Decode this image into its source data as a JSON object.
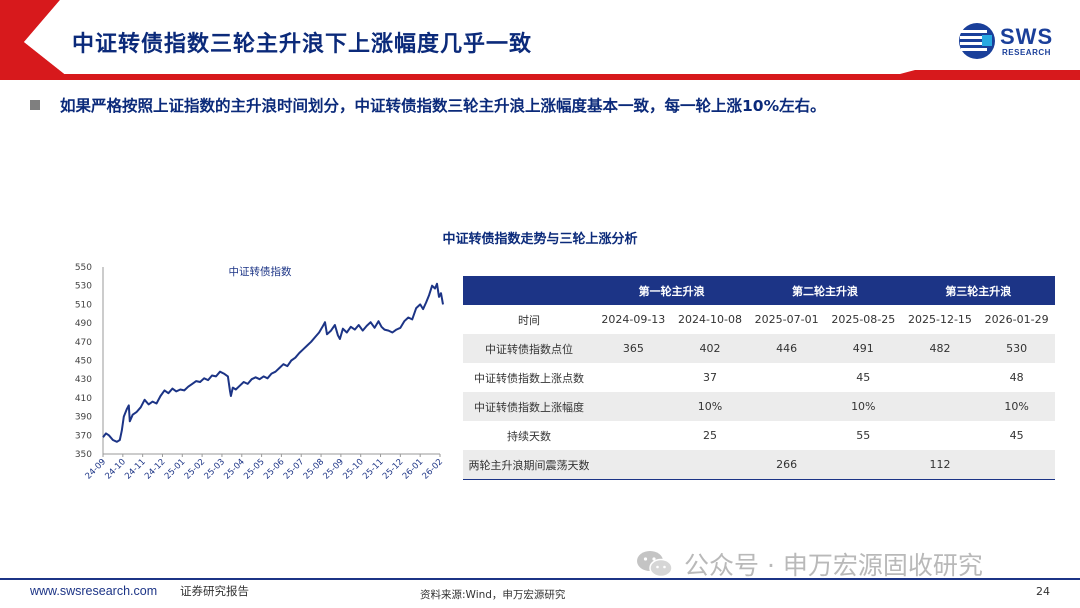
{
  "header": {
    "title": "中证转债指数三轮主升浪下上涨幅度几乎一致",
    "logo_text": "SWS",
    "logo_sub": "RESEARCH"
  },
  "bullet": "如果严格按照上证指数的主升浪时间划分，中证转债指数三轮主升浪上涨幅度基本一致，每一轮上涨10%左右。",
  "figure_title": "中证转债指数走势与三轮上涨分析",
  "chart_data": {
    "type": "line",
    "title": "中证转债指数",
    "ylim": [
      350,
      550
    ],
    "yticks": [
      350,
      370,
      390,
      410,
      430,
      450,
      470,
      490,
      510,
      530,
      550
    ],
    "xticks": [
      "24-09",
      "24-10",
      "24-11",
      "24-12",
      "25-01",
      "25-02",
      "25-03",
      "25-04",
      "25-05",
      "25-06",
      "25-07",
      "25-08",
      "25-09",
      "25-10",
      "25-11",
      "25-12",
      "26-01",
      "26-02"
    ],
    "line_color": "#1c3486",
    "series": [
      {
        "name": "中证转债指数",
        "points": [
          [
            0.0,
            368
          ],
          [
            0.15,
            372
          ],
          [
            0.3,
            370
          ],
          [
            0.5,
            365
          ],
          [
            0.7,
            363
          ],
          [
            0.85,
            365
          ],
          [
            0.95,
            375
          ],
          [
            1.05,
            390
          ],
          [
            1.2,
            398
          ],
          [
            1.3,
            402
          ],
          [
            1.35,
            385
          ],
          [
            1.5,
            392
          ],
          [
            1.7,
            395
          ],
          [
            1.9,
            400
          ],
          [
            2.1,
            408
          ],
          [
            2.3,
            403
          ],
          [
            2.5,
            406
          ],
          [
            2.7,
            404
          ],
          [
            2.9,
            412
          ],
          [
            3.1,
            418
          ],
          [
            3.3,
            415
          ],
          [
            3.5,
            420
          ],
          [
            3.7,
            417
          ],
          [
            3.9,
            419
          ],
          [
            4.1,
            418
          ],
          [
            4.3,
            422
          ],
          [
            4.5,
            425
          ],
          [
            4.7,
            428
          ],
          [
            4.9,
            427
          ],
          [
            5.1,
            431
          ],
          [
            5.3,
            429
          ],
          [
            5.5,
            434
          ],
          [
            5.7,
            433
          ],
          [
            5.9,
            438
          ],
          [
            6.1,
            436
          ],
          [
            6.3,
            433
          ],
          [
            6.4,
            418
          ],
          [
            6.45,
            412
          ],
          [
            6.55,
            421
          ],
          [
            6.7,
            419
          ],
          [
            6.9,
            423
          ],
          [
            7.1,
            427
          ],
          [
            7.3,
            425
          ],
          [
            7.5,
            430
          ],
          [
            7.7,
            432
          ],
          [
            7.9,
            430
          ],
          [
            8.1,
            433
          ],
          [
            8.3,
            431
          ],
          [
            8.5,
            436
          ],
          [
            8.7,
            438
          ],
          [
            8.9,
            442
          ],
          [
            9.1,
            446
          ],
          [
            9.3,
            444
          ],
          [
            9.5,
            450
          ],
          [
            9.7,
            453
          ],
          [
            9.9,
            458
          ],
          [
            10.1,
            462
          ],
          [
            10.3,
            466
          ],
          [
            10.5,
            470
          ],
          [
            10.7,
            475
          ],
          [
            10.9,
            480
          ],
          [
            11.1,
            487
          ],
          [
            11.2,
            491
          ],
          [
            11.3,
            478
          ],
          [
            11.5,
            482
          ],
          [
            11.7,
            488
          ],
          [
            11.85,
            477
          ],
          [
            11.95,
            473
          ],
          [
            12.1,
            484
          ],
          [
            12.3,
            480
          ],
          [
            12.5,
            486
          ],
          [
            12.7,
            483
          ],
          [
            12.9,
            488
          ],
          [
            13.1,
            482
          ],
          [
            13.3,
            487
          ],
          [
            13.5,
            491
          ],
          [
            13.7,
            485
          ],
          [
            13.9,
            492
          ],
          [
            14.05,
            486
          ],
          [
            14.2,
            483
          ],
          [
            14.4,
            482
          ],
          [
            14.6,
            480
          ],
          [
            14.8,
            483
          ],
          [
            15.0,
            485
          ],
          [
            15.2,
            492
          ],
          [
            15.4,
            496
          ],
          [
            15.6,
            494
          ],
          [
            15.8,
            506
          ],
          [
            16.0,
            510
          ],
          [
            16.15,
            505
          ],
          [
            16.3,
            512
          ],
          [
            16.45,
            520
          ],
          [
            16.6,
            530
          ],
          [
            16.75,
            527
          ],
          [
            16.85,
            532
          ],
          [
            16.95,
            518
          ],
          [
            17.05,
            522
          ],
          [
            17.15,
            510
          ]
        ]
      }
    ]
  },
  "table": {
    "group_headers": [
      "第一轮主升浪",
      "第二轮主升浪",
      "第三轮主升浪"
    ],
    "rows": [
      {
        "label": "时间",
        "cells": [
          "2024-09-13",
          "2024-10-08",
          "2025-07-01",
          "2025-08-25",
          "2025-12-15",
          "2026-01-29"
        ]
      },
      {
        "label": "中证转债指数点位",
        "cells": [
          "365",
          "402",
          "446",
          "491",
          "482",
          "530"
        ]
      },
      {
        "label": "中证转债指数上涨点数",
        "cells": [
          "",
          "37",
          "",
          "45",
          "",
          "48"
        ]
      },
      {
        "label": "中证转债指数上涨幅度",
        "cells": [
          "",
          "10%",
          "",
          "10%",
          "",
          "10%"
        ]
      },
      {
        "label": "持续天数",
        "cells": [
          "",
          "25",
          "",
          "55",
          "",
          "45"
        ]
      }
    ],
    "last_row": {
      "label": "两轮主升浪期间震荡天数",
      "first": "266",
      "second": "112"
    }
  },
  "footer": {
    "url": "www.swsresearch.com",
    "report_type": "证券研究报告",
    "source": "资料来源:Wind，申万宏源研究",
    "page": "24"
  },
  "watermark": "公众号 · 申万宏源固收研究"
}
